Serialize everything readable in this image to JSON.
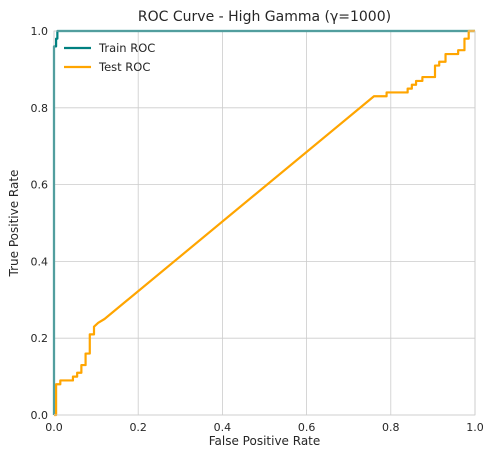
{
  "chart_data": {
    "type": "line",
    "title": "ROC Curve - High Gamma (γ=1000)",
    "xlabel": "False Positive Rate",
    "ylabel": "True Positive Rate",
    "xlim": [
      0,
      1
    ],
    "ylim": [
      0,
      1
    ],
    "xticks": [
      "0.0",
      "0.2",
      "0.4",
      "0.6",
      "0.8",
      "1.0"
    ],
    "yticks": [
      "0.0",
      "0.2",
      "0.4",
      "0.6",
      "0.8",
      "1.0"
    ],
    "xtick_values": [
      0,
      0.2,
      0.4,
      0.6,
      0.8,
      1.0
    ],
    "ytick_values": [
      0,
      0.2,
      0.4,
      0.6,
      0.8,
      1.0
    ],
    "grid": true,
    "legend_position": "top-left",
    "series": [
      {
        "name": "Train ROC",
        "color": "#008080",
        "x": [
          0,
          0,
          0.005,
          0.005,
          0.008,
          0.008,
          1.0
        ],
        "y": [
          0,
          0.96,
          0.96,
          0.98,
          0.98,
          1.0,
          1.0
        ]
      },
      {
        "name": "Test ROC",
        "color": "#FFA500",
        "x": [
          0,
          0.005,
          0.005,
          0.015,
          0.015,
          0.045,
          0.045,
          0.055,
          0.055,
          0.065,
          0.065,
          0.075,
          0.075,
          0.085,
          0.085,
          0.095,
          0.095,
          0.105,
          0.12,
          0.76,
          0.79,
          0.79,
          0.84,
          0.84,
          0.85,
          0.85,
          0.86,
          0.86,
          0.875,
          0.875,
          0.905,
          0.905,
          0.915,
          0.915,
          0.93,
          0.93,
          0.96,
          0.96,
          0.975,
          0.975,
          0.985,
          0.985,
          1.0
        ],
        "y": [
          0,
          0,
          0.08,
          0.08,
          0.09,
          0.09,
          0.1,
          0.1,
          0.11,
          0.11,
          0.13,
          0.13,
          0.16,
          0.16,
          0.21,
          0.21,
          0.23,
          0.24,
          0.25,
          0.83,
          0.83,
          0.84,
          0.84,
          0.85,
          0.85,
          0.86,
          0.86,
          0.87,
          0.87,
          0.88,
          0.88,
          0.91,
          0.91,
          0.92,
          0.92,
          0.94,
          0.94,
          0.95,
          0.95,
          0.98,
          0.98,
          1.0,
          1.0
        ]
      }
    ]
  }
}
